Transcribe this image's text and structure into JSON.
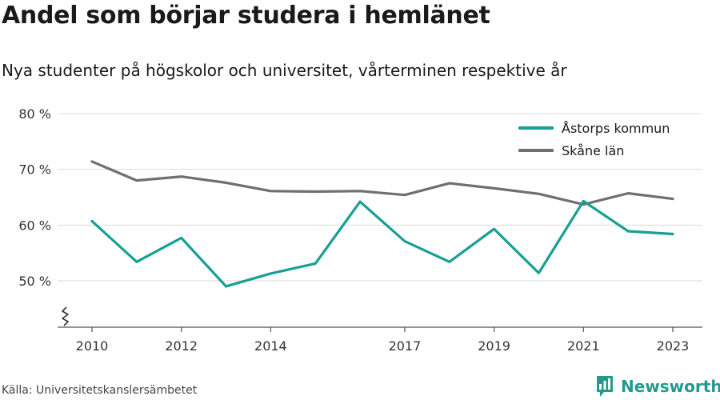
{
  "header": {
    "title": "Andel som börjar studera i hemlänet",
    "subtitle": "Nya studenter på högskolor och universitet, vårterminen respektive år"
  },
  "footer": {
    "source": "Källa: Universitetskanslersämbetet",
    "brand": "Newsworthy"
  },
  "colors": {
    "astorp": "#16a093",
    "skane": "#6e6e74",
    "grid": "#d9d9d9",
    "axis": "#555555",
    "brand": "#239a8e"
  },
  "chart_data": {
    "type": "line",
    "title": "Andel som börjar studera i hemlänet",
    "subtitle": "Nya studenter på högskolor och universitet, vårterminen respektive år",
    "xlabel": "",
    "ylabel": "",
    "x": [
      2010,
      2011,
      2012,
      2013,
      2014,
      2015,
      2016,
      2017,
      2018,
      2019,
      2020,
      2021,
      2022,
      2023
    ],
    "x_ticks": [
      2010,
      2012,
      2014,
      2017,
      2019,
      2021,
      2023
    ],
    "y_ticks": [
      50,
      60,
      70,
      80
    ],
    "y_tick_labels": [
      "50 %",
      "60 %",
      "70 %",
      "80 %"
    ],
    "xlim": [
      2010,
      2023
    ],
    "ylim": [
      42,
      80
    ],
    "y_axis_break": true,
    "grid": "horizontal",
    "legend_position": "top-right",
    "series": [
      {
        "name": "Åstorps kommun",
        "color_key": "astorp",
        "values": [
          60.7,
          53.4,
          57.7,
          49.0,
          51.3,
          53.1,
          64.2,
          57.1,
          53.4,
          59.3,
          51.4,
          64.3,
          58.9,
          58.4
        ]
      },
      {
        "name": "Skåne län",
        "color_key": "skane",
        "values": [
          71.4,
          68.0,
          68.7,
          67.6,
          66.1,
          66.0,
          66.1,
          65.4,
          67.5,
          66.6,
          65.6,
          63.7,
          65.7,
          64.7
        ]
      }
    ]
  }
}
